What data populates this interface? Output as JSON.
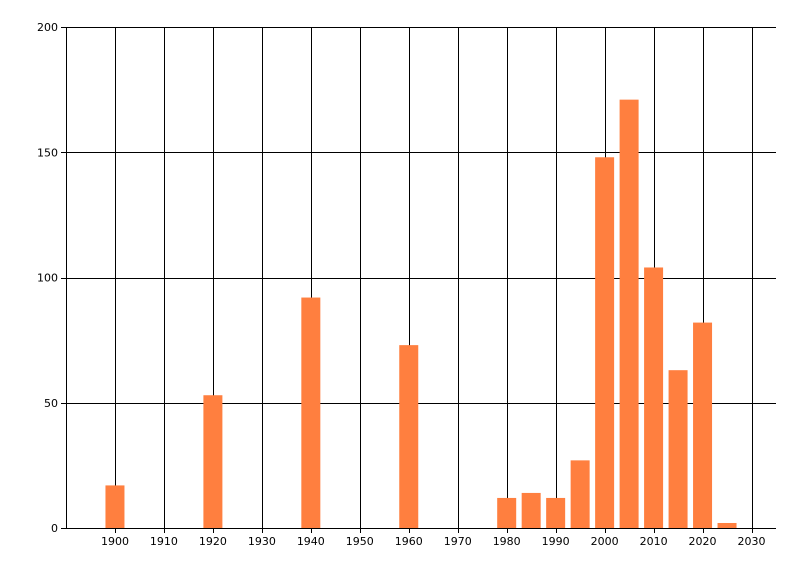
{
  "chart_data": {
    "type": "bar",
    "x": [
      1900,
      1920,
      1940,
      1960,
      1980,
      1985,
      1990,
      1995,
      2000,
      2005,
      2010,
      2015,
      2020,
      2025
    ],
    "values": [
      17,
      53,
      92,
      73,
      12,
      14,
      12,
      27,
      148,
      171,
      104,
      63,
      82,
      2
    ],
    "xlim": [
      1890,
      2035
    ],
    "ylim": [
      0,
      200
    ],
    "xticks": [
      1900,
      1910,
      1920,
      1930,
      1940,
      1950,
      1960,
      1970,
      1980,
      1990,
      2000,
      2010,
      2020,
      2030
    ],
    "yticks": [
      0,
      50,
      100,
      150,
      200
    ],
    "grid": true,
    "bar_color": "#ff7f3f",
    "title": "",
    "xlabel": "",
    "ylabel": ""
  }
}
